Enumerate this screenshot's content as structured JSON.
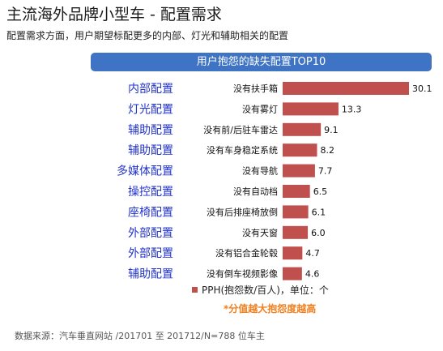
{
  "header": {
    "title": "主流海外品牌小型车 - 配置需求",
    "subtitle": "配置需求方面，用户期望标配更多的内部、灯光和辅助相关的配置"
  },
  "banner": "用户抱怨的缺失配置TOP10",
  "footer": "数据来源：汽车垂直网站 /201701 至 201712/N=788 位车主",
  "colors": {
    "bar": "#c0504d",
    "category": "#2233cc",
    "note": "#f08020",
    "banner": "#3f74c4"
  },
  "chart_data": {
    "type": "bar",
    "orientation": "horizontal",
    "groups": [
      "内部配置",
      "灯光配置",
      "辅助配置",
      "辅助配置",
      "多媒体配置",
      "操控配置",
      "座椅配置",
      "外部配置",
      "外部配置",
      "辅助配置"
    ],
    "categories": [
      "没有扶手箱",
      "没有雾灯",
      "没有前/后驻车雷达",
      "没有车身稳定系统",
      "没有导航",
      "没有自动档",
      "没有后排座椅放倒",
      "没有天窗",
      "没有铝合金轮毂",
      "没有倒车视频影像"
    ],
    "values": [
      30.1,
      13.3,
      9.1,
      8.2,
      7.7,
      6.5,
      6.1,
      6.0,
      4.7,
      4.6
    ],
    "value_labels": [
      "30.1",
      "13.3",
      "9.1",
      "8.2",
      "7.7",
      "6.5",
      "6.1",
      "6.0",
      "4.7",
      "4.6"
    ],
    "xlim": [
      0,
      30.1
    ],
    "legend": {
      "label": "PPH(抱怨数/百人)，单位：个",
      "placement": "bottom"
    },
    "note": "*分值越大抱怨度越高"
  }
}
